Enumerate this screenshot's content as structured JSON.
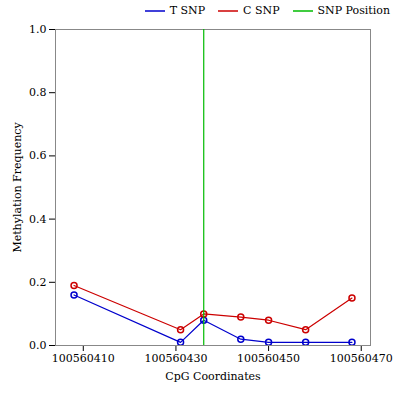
{
  "chart_data": {
    "type": "line",
    "xlabel": "CpG Coordinates",
    "ylabel": "Methylation Frequency",
    "x": [
      100560408,
      100560431,
      100560436,
      100560444,
      100560450,
      100560458,
      100560468
    ],
    "series": [
      {
        "name": "T SNP",
        "color": "#0000cc",
        "marker": "circle",
        "values": [
          0.16,
          0.01,
          0.08,
          0.02,
          0.01,
          0.01,
          0.01
        ]
      },
      {
        "name": "C SNP",
        "color": "#cc0000",
        "marker": "circle",
        "values": [
          0.19,
          0.05,
          0.1,
          0.09,
          0.08,
          0.05,
          0.15
        ]
      }
    ],
    "vline": {
      "name": "SNP Position",
      "x": 100560436,
      "color": "#00bb00"
    },
    "xlim": [
      100560404,
      100560472
    ],
    "ylim": [
      0.0,
      1.0
    ],
    "xticks": [
      100560410,
      100560430,
      100560450,
      100560470
    ],
    "yticks": [
      {
        "value": 0.0,
        "label": "0.0"
      },
      0.2,
      0.4,
      0.6,
      0.8,
      {
        "value": 1.0,
        "label": "1.0"
      }
    ],
    "legend": "upper right"
  }
}
